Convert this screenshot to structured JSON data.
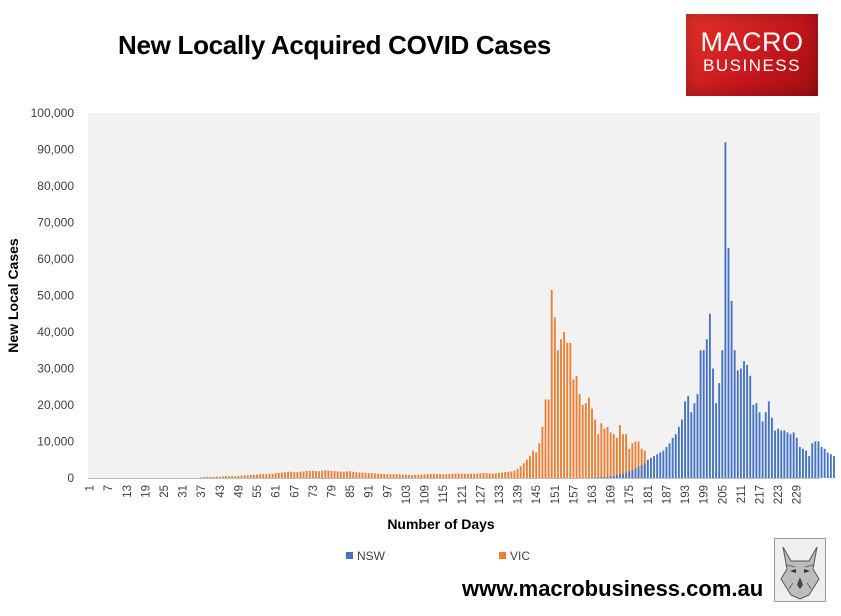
{
  "chart_data": {
    "type": "bar",
    "title": "New Locally Acquired COVID Cases",
    "xlabel": "Number of Days",
    "ylabel": "New Local Cases",
    "ylim": [
      0,
      100000
    ],
    "yticks": [
      "0",
      "10,000",
      "20,000",
      "30,000",
      "40,000",
      "50,000",
      "60,000",
      "70,000",
      "80,000",
      "90,000",
      "100,000"
    ],
    "xticks": [
      "1",
      "7",
      "13",
      "19",
      "25",
      "31",
      "37",
      "43",
      "49",
      "55",
      "61",
      "67",
      "73",
      "79",
      "85",
      "91",
      "97",
      "103",
      "109",
      "115",
      "121",
      "127",
      "133",
      "139",
      "145",
      "151",
      "157",
      "163",
      "169",
      "175",
      "181",
      "187",
      "193",
      "199",
      "205",
      "211",
      "217",
      "223",
      "229"
    ],
    "x_start": 1,
    "x_end": 236,
    "grid": false,
    "legend_position": "bottom",
    "series": [
      {
        "name": "NSW",
        "color": "#4472C4",
        "start_day": 162,
        "values": [
          50,
          100,
          150,
          200,
          250,
          300,
          400,
          500,
          600,
          800,
          1000,
          1200,
          1500,
          1800,
          2200,
          2600,
          3000,
          3500,
          4000,
          5000,
          5500,
          6000,
          6500,
          7000,
          7500,
          8500,
          9500,
          11000,
          12000,
          14000,
          16000,
          21000,
          22500,
          18000,
          20500,
          23000,
          35000,
          35000,
          38000,
          45000,
          30000,
          20500,
          26000,
          35000,
          92000,
          63000,
          48500,
          35000,
          29500,
          30000,
          32000,
          31000,
          28000,
          20000,
          20500,
          18000,
          15500,
          18000,
          21000,
          16500,
          13000,
          13500,
          13000,
          13000,
          12500,
          12000,
          12500,
          11000,
          8500,
          8000,
          7500,
          6000,
          9500,
          10000,
          10000,
          8500,
          8000,
          7000,
          6500,
          6000
        ]
      },
      {
        "name": "VIC",
        "color": "#ED7D31",
        "start_day": 37,
        "values": [
          200,
          300,
          350,
          250,
          300,
          400,
          350,
          450,
          500,
          450,
          550,
          500,
          600,
          650,
          700,
          750,
          800,
          850,
          900,
          1000,
          1100,
          1050,
          1200,
          1150,
          1300,
          1400,
          1500,
          1600,
          1700,
          1750,
          1650,
          1600,
          1700,
          1800,
          1900,
          1950,
          2000,
          1900,
          1850,
          2000,
          2100,
          2050,
          1950,
          1900,
          1800,
          1750,
          1700,
          1800,
          1850,
          1700,
          1600,
          1500,
          1450,
          1400,
          1350,
          1300,
          1250,
          1200,
          1150,
          1100,
          1050,
          1000,
          1050,
          1100,
          1000,
          950,
          900,
          850,
          800,
          850,
          900,
          950,
          1000,
          1050,
          1100,
          1150,
          1100,
          1050,
          1000,
          1050,
          1100,
          1150,
          1200,
          1250,
          1200,
          1150,
          1100,
          1150,
          1200,
          1250,
          1300,
          1350,
          1300,
          1250,
          1200,
          1300,
          1400,
          1500,
          1600,
          1700,
          1800,
          2000,
          2500,
          3200,
          4000,
          5000,
          6000,
          7500,
          7000,
          9500,
          14000,
          21500,
          21500,
          51500,
          44000,
          35000,
          38000,
          40000,
          37000,
          37000,
          27000,
          28000,
          23000,
          20000,
          20500,
          22000,
          19000,
          16000,
          12000,
          15000,
          13500,
          14000,
          12500,
          12000,
          11000,
          14500,
          12000,
          12000,
          8000,
          9500,
          10000,
          10000,
          8000,
          7500
        ]
      }
    ]
  },
  "logo": {
    "line1": "MACRO",
    "line2": "BUSINESS"
  },
  "footer": {
    "url": "www.macrobusiness.com.au"
  }
}
